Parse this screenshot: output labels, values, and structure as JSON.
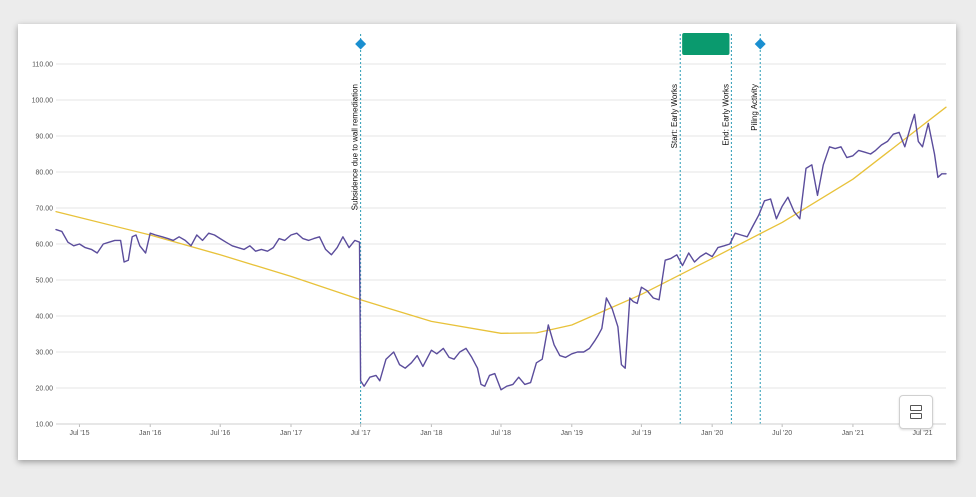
{
  "chart_data": {
    "type": "line",
    "title": "",
    "xlabel": "",
    "ylabel": "",
    "ylim": [
      10,
      110
    ],
    "yticks": [
      "10.00",
      "20.00",
      "30.00",
      "40.00",
      "50.00",
      "60.00",
      "70.00",
      "80.00",
      "90.00",
      "100.00",
      "110.00"
    ],
    "xlim": [
      "2015-05-01",
      "2021-08-31"
    ],
    "xticks": [
      {
        "label": "Jul '15",
        "date": "2015-07-01"
      },
      {
        "label": "Jan '16",
        "date": "2016-01-01"
      },
      {
        "label": "Jul '16",
        "date": "2016-07-01"
      },
      {
        "label": "Jan '17",
        "date": "2017-01-01"
      },
      {
        "label": "Jul '17",
        "date": "2017-07-01"
      },
      {
        "label": "Jan '18",
        "date": "2018-01-01"
      },
      {
        "label": "Jul '18",
        "date": "2018-07-01"
      },
      {
        "label": "Jan '19",
        "date": "2019-01-01"
      },
      {
        "label": "Jul '19",
        "date": "2019-07-01"
      },
      {
        "label": "Jan '20",
        "date": "2020-01-01"
      },
      {
        "label": "Jul '20",
        "date": "2020-07-01"
      },
      {
        "label": "Jan '21",
        "date": "2021-01-01"
      },
      {
        "label": "Jul '21",
        "date": "2021-07-01"
      }
    ],
    "grid": true,
    "series": [
      {
        "color": "#5b4d9c",
        "points": [
          [
            "2015-05-01",
            64
          ],
          [
            "2015-05-16",
            63.5
          ],
          [
            "2015-06-01",
            60.5
          ],
          [
            "2015-06-16",
            59.5
          ],
          [
            "2015-07-01",
            60
          ],
          [
            "2015-07-16",
            59
          ],
          [
            "2015-08-01",
            58.5
          ],
          [
            "2015-08-16",
            57.5
          ],
          [
            "2015-09-01",
            60
          ],
          [
            "2015-09-16",
            60.5
          ],
          [
            "2015-10-01",
            61
          ],
          [
            "2015-10-16",
            61
          ],
          [
            "2015-10-25",
            55
          ],
          [
            "2015-11-05",
            55.5
          ],
          [
            "2015-11-15",
            62
          ],
          [
            "2015-11-25",
            62.5
          ],
          [
            "2015-12-05",
            59.5
          ],
          [
            "2015-12-20",
            57.5
          ],
          [
            "2016-01-01",
            63
          ],
          [
            "2016-01-15",
            62.5
          ],
          [
            "2016-02-01",
            62
          ],
          [
            "2016-02-16",
            61.5
          ],
          [
            "2016-03-01",
            61
          ],
          [
            "2016-03-16",
            62
          ],
          [
            "2016-04-01",
            61
          ],
          [
            "2016-04-16",
            59.5
          ],
          [
            "2016-05-01",
            62.5
          ],
          [
            "2016-05-16",
            61
          ],
          [
            "2016-06-01",
            63
          ],
          [
            "2016-06-16",
            62.5
          ],
          [
            "2016-07-01",
            61.5
          ],
          [
            "2016-07-16",
            60.5
          ],
          [
            "2016-08-01",
            59.5
          ],
          [
            "2016-08-16",
            59
          ],
          [
            "2016-09-01",
            58.5
          ],
          [
            "2016-09-16",
            59.5
          ],
          [
            "2016-10-01",
            58
          ],
          [
            "2016-10-16",
            58.5
          ],
          [
            "2016-11-01",
            58
          ],
          [
            "2016-11-16",
            59
          ],
          [
            "2016-12-01",
            61.5
          ],
          [
            "2016-12-16",
            61
          ],
          [
            "2017-01-01",
            62.5
          ],
          [
            "2017-01-16",
            63
          ],
          [
            "2017-02-01",
            61.5
          ],
          [
            "2017-02-16",
            61
          ],
          [
            "2017-03-01",
            61.5
          ],
          [
            "2017-03-16",
            62
          ],
          [
            "2017-04-01",
            58.5
          ],
          [
            "2017-04-16",
            57
          ],
          [
            "2017-05-01",
            59
          ],
          [
            "2017-05-16",
            62
          ],
          [
            "2017-06-01",
            59
          ],
          [
            "2017-06-16",
            61
          ],
          [
            "2017-06-28",
            60.5
          ],
          [
            "2017-07-01",
            22
          ],
          [
            "2017-07-10",
            20.5
          ],
          [
            "2017-07-25",
            23
          ],
          [
            "2017-08-10",
            23.5
          ],
          [
            "2017-08-20",
            22
          ],
          [
            "2017-09-05",
            28
          ],
          [
            "2017-09-25",
            30
          ],
          [
            "2017-10-10",
            26.5
          ],
          [
            "2017-10-25",
            25.5
          ],
          [
            "2017-11-10",
            27
          ],
          [
            "2017-11-25",
            29
          ],
          [
            "2017-12-10",
            26
          ],
          [
            "2018-01-01",
            30.5
          ],
          [
            "2018-01-15",
            29.5
          ],
          [
            "2018-02-01",
            31
          ],
          [
            "2018-02-16",
            28.5
          ],
          [
            "2018-03-01",
            28
          ],
          [
            "2018-03-16",
            30
          ],
          [
            "2018-04-01",
            31
          ],
          [
            "2018-04-16",
            28.5
          ],
          [
            "2018-05-01",
            25.5
          ],
          [
            "2018-05-10",
            21
          ],
          [
            "2018-05-20",
            20.5
          ],
          [
            "2018-06-01",
            23.5
          ],
          [
            "2018-06-15",
            24
          ],
          [
            "2018-07-01",
            19.5
          ],
          [
            "2018-07-16",
            20.5
          ],
          [
            "2018-08-01",
            21
          ],
          [
            "2018-08-16",
            23
          ],
          [
            "2018-09-01",
            21
          ],
          [
            "2018-09-16",
            21.5
          ],
          [
            "2018-10-01",
            27
          ],
          [
            "2018-10-16",
            28
          ],
          [
            "2018-11-01",
            37.5
          ],
          [
            "2018-11-16",
            32
          ],
          [
            "2018-12-01",
            29
          ],
          [
            "2018-12-16",
            28.5
          ],
          [
            "2019-01-01",
            29.5
          ],
          [
            "2019-01-16",
            30
          ],
          [
            "2019-02-01",
            30
          ],
          [
            "2019-02-16",
            31
          ],
          [
            "2019-03-01",
            33
          ],
          [
            "2019-03-10",
            34.5
          ],
          [
            "2019-03-20",
            36.5
          ],
          [
            "2019-04-01",
            45
          ],
          [
            "2019-04-16",
            42
          ],
          [
            "2019-05-01",
            37
          ],
          [
            "2019-05-10",
            26.5
          ],
          [
            "2019-05-20",
            25.5
          ],
          [
            "2019-06-01",
            45
          ],
          [
            "2019-06-10",
            44
          ],
          [
            "2019-06-20",
            43.5
          ],
          [
            "2019-07-01",
            48
          ],
          [
            "2019-07-16",
            47
          ],
          [
            "2019-08-01",
            45
          ],
          [
            "2019-08-16",
            44.5
          ],
          [
            "2019-09-01",
            55.5
          ],
          [
            "2019-09-16",
            56
          ],
          [
            "2019-10-01",
            57
          ],
          [
            "2019-10-16",
            54
          ],
          [
            "2019-11-01",
            57.5
          ],
          [
            "2019-11-16",
            55
          ],
          [
            "2019-12-01",
            56.5
          ],
          [
            "2019-12-16",
            57.5
          ],
          [
            "2020-01-01",
            56.5
          ],
          [
            "2020-01-16",
            59
          ],
          [
            "2020-02-01",
            59.5
          ],
          [
            "2020-02-16",
            60
          ],
          [
            "2020-03-01",
            63
          ],
          [
            "2020-03-16",
            62.5
          ],
          [
            "2020-04-01",
            62
          ],
          [
            "2020-04-16",
            65
          ],
          [
            "2020-05-01",
            68
          ],
          [
            "2020-05-16",
            72
          ],
          [
            "2020-06-01",
            72.5
          ],
          [
            "2020-06-16",
            67
          ],
          [
            "2020-07-01",
            70.5
          ],
          [
            "2020-07-16",
            73
          ],
          [
            "2020-08-01",
            69
          ],
          [
            "2020-08-16",
            67
          ],
          [
            "2020-09-01",
            81
          ],
          [
            "2020-09-16",
            82
          ],
          [
            "2020-10-01",
            73.5
          ],
          [
            "2020-10-16",
            82
          ],
          [
            "2020-11-01",
            87
          ],
          [
            "2020-11-16",
            86.5
          ],
          [
            "2020-12-01",
            87
          ],
          [
            "2020-12-16",
            84
          ],
          [
            "2021-01-01",
            84.5
          ],
          [
            "2021-01-16",
            86
          ],
          [
            "2021-02-01",
            85.5
          ],
          [
            "2021-02-16",
            85
          ],
          [
            "2021-03-01",
            86
          ],
          [
            "2021-03-16",
            87.5
          ],
          [
            "2021-04-01",
            88.5
          ],
          [
            "2021-04-16",
            90.5
          ],
          [
            "2021-05-01",
            91
          ],
          [
            "2021-05-16",
            87
          ],
          [
            "2021-06-01",
            93
          ],
          [
            "2021-06-10",
            96
          ],
          [
            "2021-06-20",
            88.5
          ],
          [
            "2021-07-01",
            87
          ],
          [
            "2021-07-16",
            93.5
          ],
          [
            "2021-08-01",
            85
          ],
          [
            "2021-08-10",
            78.5
          ],
          [
            "2021-08-20",
            79.5
          ],
          [
            "2021-08-31",
            79.5
          ]
        ]
      },
      {
        "color": "#e8c23a",
        "points": [
          [
            "2015-05-01",
            69
          ],
          [
            "2016-01-01",
            62.5
          ],
          [
            "2016-07-01",
            57
          ],
          [
            "2017-01-01",
            51
          ],
          [
            "2017-07-01",
            44.5
          ],
          [
            "2018-01-01",
            38.5
          ],
          [
            "2018-07-01",
            35.2
          ],
          [
            "2018-10-01",
            35.3
          ],
          [
            "2019-01-01",
            37.5
          ],
          [
            "2019-07-01",
            46
          ],
          [
            "2020-01-01",
            56
          ],
          [
            "2020-07-01",
            66
          ],
          [
            "2021-01-01",
            78
          ],
          [
            "2021-08-31",
            98
          ]
        ]
      }
    ],
    "annotations": [
      {
        "type": "line",
        "date": "2017-07-01",
        "label": "Subsidence due to wall remediation",
        "marker": "diamond"
      },
      {
        "type": "line",
        "date": "2019-10-10",
        "label": "Start: Early Works"
      },
      {
        "type": "line",
        "date": "2020-02-20",
        "label": "End: Early Works"
      },
      {
        "type": "line",
        "date": "2020-05-05",
        "label": "Piling Activity",
        "marker": "diamond"
      },
      {
        "type": "band",
        "start": "2019-10-15",
        "end": "2020-02-15"
      }
    ],
    "colors": {
      "annotation": "#2a9bb5",
      "diamond": "#1a8fd0",
      "band": "#0a9a6e",
      "grid": "#e6e6e6"
    }
  },
  "controls": {
    "layout_button_icon": "layout-rows-icon"
  }
}
